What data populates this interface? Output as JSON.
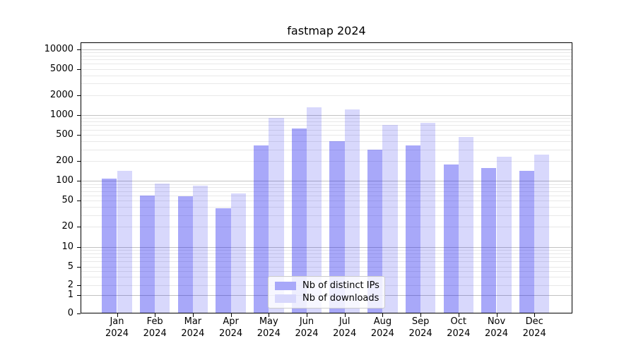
{
  "title": "fastmap 2024",
  "legend": {
    "items": [
      {
        "label": "Nb of distinct IPs"
      },
      {
        "label": "Nb of downloads"
      }
    ]
  },
  "colors": {
    "distinct_ips_bar": "rgba(25,25,240,0.38)",
    "downloads_bar": "rgba(25,25,240,0.17)",
    "distinct_ips_swatch": "#a8a8f9",
    "downloads_swatch": "#d8d8fc",
    "grid_major": "#c2c2c2",
    "grid_minor": "#e8e8e8",
    "axis": "#000000",
    "text": "#000000",
    "background": "#ffffff"
  },
  "y_axis": {
    "tick_labels": [
      "0",
      "1",
      "2",
      "5",
      "10",
      "20",
      "50",
      "100",
      "200",
      "500",
      "1000",
      "2000",
      "5000",
      "10000"
    ]
  },
  "x_axis": {
    "months": [
      "Jan",
      "Feb",
      "Mar",
      "Apr",
      "May",
      "Jun",
      "Jul",
      "Aug",
      "Sep",
      "Oct",
      "Nov",
      "Dec"
    ],
    "year": "2024"
  },
  "chart_data": {
    "type": "bar",
    "title": "fastmap 2024",
    "categories": [
      "Jan 2024",
      "Feb 2024",
      "Mar 2024",
      "Apr 2024",
      "May 2024",
      "Jun 2024",
      "Jul 2024",
      "Aug 2024",
      "Sep 2024",
      "Oct 2024",
      "Nov 2024",
      "Dec 2024"
    ],
    "series": [
      {
        "name": "Nb of distinct IPs",
        "values": [
          108,
          60,
          59,
          38,
          343,
          620,
          400,
          300,
          343,
          177,
          158,
          141
        ]
      },
      {
        "name": "Nb of downloads",
        "values": [
          141,
          91,
          85,
          64,
          895,
          1310,
          1230,
          700,
          755,
          462,
          234,
          248
        ]
      }
    ],
    "yscale": "symlog",
    "y_ticks": [
      0,
      1,
      2,
      5,
      10,
      20,
      50,
      100,
      200,
      500,
      1000,
      2000,
      5000,
      10000
    ],
    "ylim": [
      0,
      12700
    ],
    "grid": "both",
    "legend_position": "lower center (inside axes)"
  }
}
